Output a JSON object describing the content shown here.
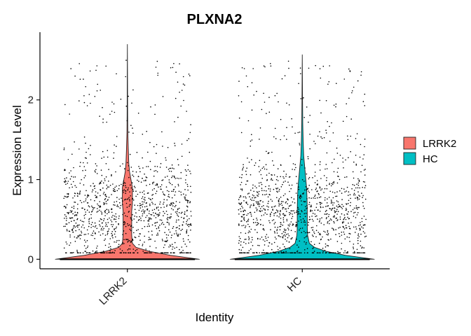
{
  "chart_data": {
    "type": "violin",
    "title": "PLXNA2",
    "xlabel": "Identity",
    "ylabel": "Expression Level",
    "categories": [
      "LRRK2",
      "HC"
    ],
    "ylim": [
      -0.12,
      2.85
    ],
    "yticks": [
      0,
      1,
      2
    ],
    "grid": false,
    "legend_position": "right",
    "points_shown": true,
    "series": [
      {
        "name": "LRRK2",
        "color": "#F8766D",
        "max": 2.7,
        "density_profile": [
          [
            0.0,
            1.0
          ],
          [
            0.05,
            0.6
          ],
          [
            0.1,
            0.3
          ],
          [
            0.15,
            0.12
          ],
          [
            0.2,
            0.07
          ],
          [
            0.3,
            0.06
          ],
          [
            0.4,
            0.06
          ],
          [
            0.5,
            0.06
          ],
          [
            0.6,
            0.06
          ],
          [
            0.7,
            0.07
          ],
          [
            0.8,
            0.07
          ],
          [
            0.9,
            0.07
          ],
          [
            1.0,
            0.05
          ],
          [
            1.1,
            0.03
          ],
          [
            1.2,
            0.02
          ],
          [
            1.4,
            0.012
          ],
          [
            1.6,
            0.006
          ],
          [
            1.8,
            0.004
          ],
          [
            2.0,
            0.003
          ],
          [
            2.3,
            0.002
          ],
          [
            2.7,
            0.0
          ]
        ]
      },
      {
        "name": "HC",
        "color": "#00BFC4",
        "max": 2.57,
        "density_profile": [
          [
            0.0,
            1.0
          ],
          [
            0.05,
            0.6
          ],
          [
            0.1,
            0.33
          ],
          [
            0.15,
            0.17
          ],
          [
            0.2,
            0.1
          ],
          [
            0.3,
            0.075
          ],
          [
            0.4,
            0.07
          ],
          [
            0.5,
            0.07
          ],
          [
            0.6,
            0.07
          ],
          [
            0.7,
            0.068
          ],
          [
            0.8,
            0.065
          ],
          [
            0.9,
            0.06
          ],
          [
            1.0,
            0.05
          ],
          [
            1.1,
            0.04
          ],
          [
            1.2,
            0.03
          ],
          [
            1.3,
            0.02
          ],
          [
            1.5,
            0.012
          ],
          [
            1.7,
            0.007
          ],
          [
            2.0,
            0.004
          ],
          [
            2.3,
            0.002
          ],
          [
            2.57,
            0.0
          ]
        ]
      }
    ],
    "legend": [
      {
        "label": "LRRK2",
        "color": "#F8766D"
      },
      {
        "label": "HC",
        "color": "#00BFC4"
      }
    ]
  }
}
